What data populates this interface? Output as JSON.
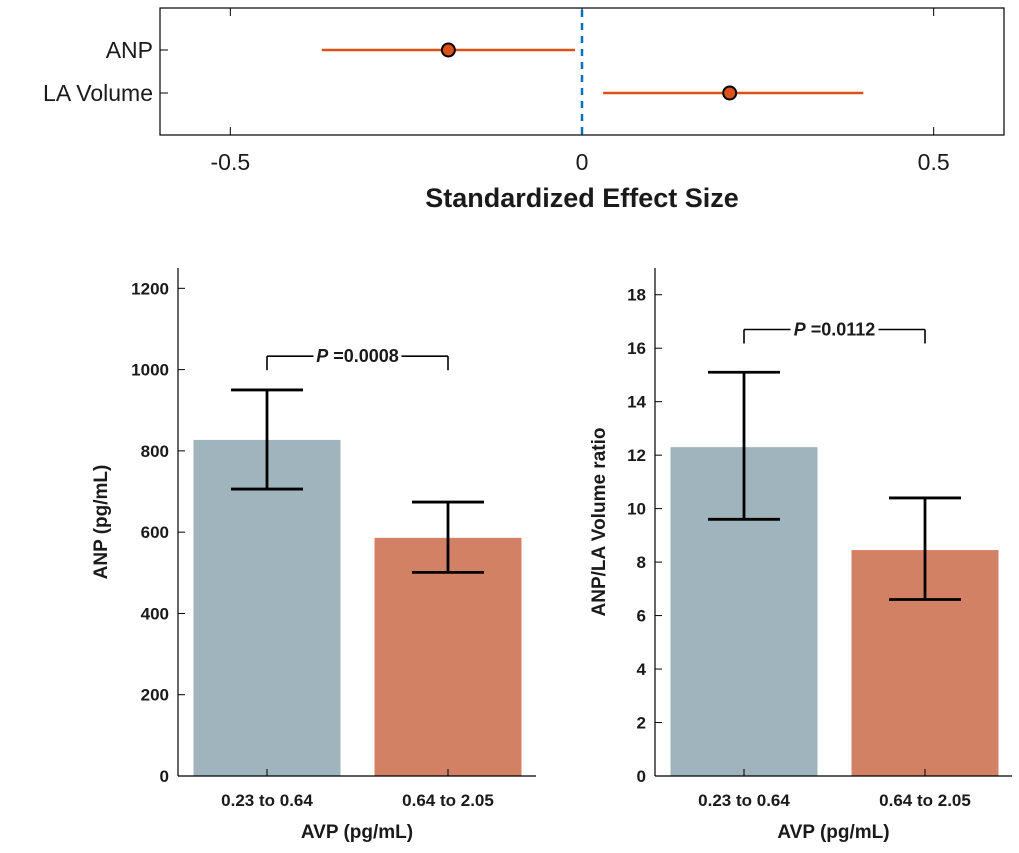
{
  "chart_data": [
    {
      "type": "scatter",
      "subtype": "forest-plot",
      "categories": [
        "ANP",
        "LA Volume"
      ],
      "estimates": [
        -0.19,
        0.21
      ],
      "ci_low": [
        -0.37,
        0.03
      ],
      "ci_high": [
        -0.01,
        0.4
      ],
      "reference_line": 0,
      "xlim": [
        -0.6,
        0.6
      ],
      "xticks": [
        -0.5,
        0,
        0.5
      ],
      "xtick_labels": [
        "-0.5",
        "0",
        "0.5"
      ],
      "xlabel": "Standardized Effect Size",
      "colors": {
        "ci": "#d95319",
        "marker": "#d95319",
        "reference": "#0072bd"
      }
    },
    {
      "type": "bar",
      "categories": [
        "0.23 to 0.64",
        "0.64 to 2.05"
      ],
      "values": [
        827,
        586
      ],
      "err_low": [
        706,
        501
      ],
      "err_high": [
        950,
        674
      ],
      "ylim": [
        0,
        1250
      ],
      "yticks": [
        0,
        200,
        400,
        600,
        800,
        1000,
        1200
      ],
      "ylabel": "ANP (pg/mL)",
      "xlabel": "AVP (pg/mL)",
      "annotation": {
        "prefix": "P",
        "text": " =0.0008",
        "bracket_y": 1033
      },
      "colors": [
        "#a0b4bd",
        "#d38164"
      ]
    },
    {
      "type": "bar",
      "categories": [
        "0.23 to 0.64",
        "0.64 to 2.05"
      ],
      "values": [
        12.3,
        8.45
      ],
      "err_low": [
        9.6,
        6.6
      ],
      "err_high": [
        15.1,
        10.4
      ],
      "ylim": [
        0,
        19
      ],
      "yticks": [
        0,
        2,
        4,
        6,
        8,
        10,
        12,
        14,
        16,
        18
      ],
      "ylabel": "ANP/LA Volume ratio",
      "xlabel": "AVP (pg/mL)",
      "annotation": {
        "prefix": "P",
        "text": " =0.0112",
        "bracket_y": 16.7
      },
      "colors": [
        "#a0b4bd",
        "#d38164"
      ]
    }
  ]
}
